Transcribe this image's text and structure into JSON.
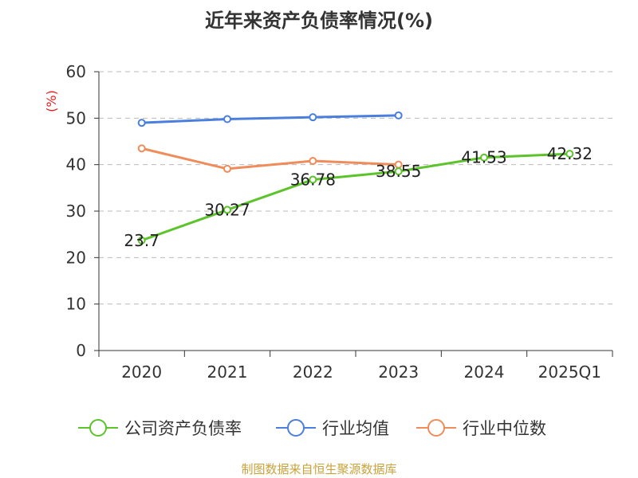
{
  "title": "近年来资产负债率情况(%)",
  "source": "制图数据来自恒生聚源数据库",
  "chart_data": {
    "type": "line",
    "title": "近年来资产负债率情况(%)",
    "ylabel": "(%)",
    "ylim": [
      0,
      60
    ],
    "yticks": [
      "0",
      "10",
      "20",
      "30",
      "40",
      "50",
      "60"
    ],
    "categories": [
      "2020",
      "2021",
      "2022",
      "2023",
      "2024",
      "2025Q1"
    ],
    "grid": true,
    "legend_position": "bottom",
    "series": [
      {
        "name": "公司资产负债率",
        "color": "#5cc42a",
        "values": [
          23.7,
          30.27,
          36.78,
          38.55,
          41.53,
          42.32
        ],
        "labels": [
          "23.7",
          "30.27",
          "36.78",
          "38.55",
          "41.53",
          "42.32"
        ]
      },
      {
        "name": "行业均值",
        "color": "#4a7fdd",
        "values": [
          49.0,
          49.8,
          50.2,
          50.6,
          null,
          null
        ]
      },
      {
        "name": "行业中位数",
        "color": "#f08c5a",
        "values": [
          43.5,
          39.1,
          40.8,
          40.0,
          null,
          null
        ]
      }
    ]
  }
}
